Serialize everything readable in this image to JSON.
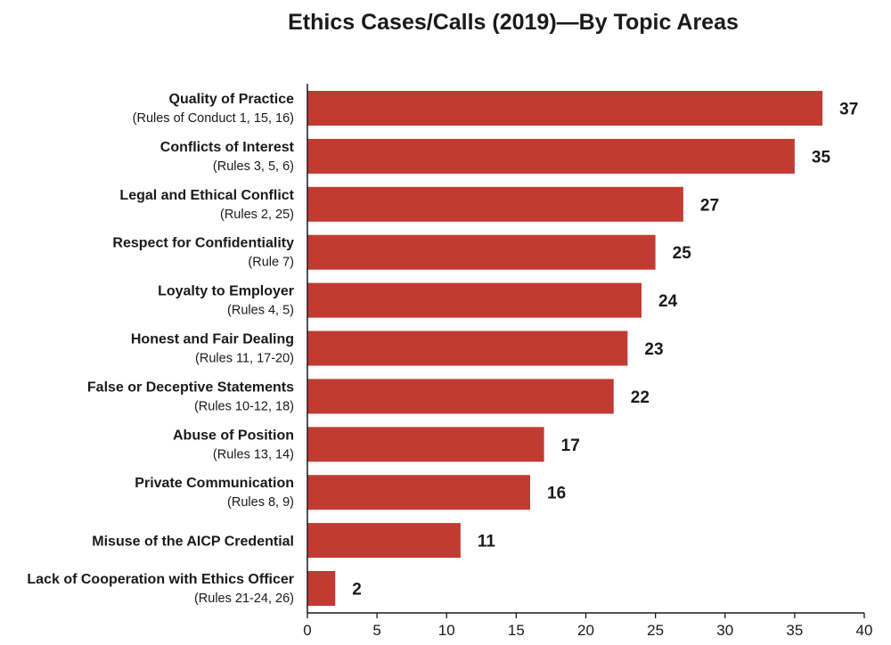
{
  "chart_data": {
    "type": "bar",
    "orientation": "horizontal",
    "title": "Ethics Cases/Calls (2019)—By Topic Areas",
    "categories": [
      {
        "label": "Quality of Practice",
        "sublabel": "(Rules of Conduct 1, 15, 16)"
      },
      {
        "label": "Conflicts of Interest",
        "sublabel": "(Rules 3, 5, 6)"
      },
      {
        "label": "Legal and Ethical Conflict",
        "sublabel": "(Rules 2, 25)"
      },
      {
        "label": "Respect for Confidentiality",
        "sublabel": "(Rule 7)"
      },
      {
        "label": "Loyalty to Employer",
        "sublabel": "(Rules 4, 5)"
      },
      {
        "label": "Honest and Fair Dealing",
        "sublabel": "(Rules 11, 17-20)"
      },
      {
        "label": "False or Deceptive Statements",
        "sublabel": "(Rules 10-12, 18)"
      },
      {
        "label": "Abuse of Position",
        "sublabel": "(Rules 13, 14)"
      },
      {
        "label": "Private Communication",
        "sublabel": "(Rules 8, 9)"
      },
      {
        "label": "Misuse of the AICP Credential",
        "sublabel": ""
      },
      {
        "label": "Lack of Cooperation with Ethics Officer",
        "sublabel": "(Rules 21-24, 26)"
      }
    ],
    "values": [
      37,
      35,
      27,
      25,
      24,
      23,
      22,
      17,
      16,
      11,
      2
    ],
    "xlim": [
      0,
      40
    ],
    "xticks": [
      0,
      5,
      10,
      15,
      20,
      25,
      30,
      35,
      40
    ],
    "xlabel": "",
    "ylabel": "",
    "grid": false,
    "legend": "none",
    "bar_color": "#c23b33",
    "data_labels": true
  }
}
